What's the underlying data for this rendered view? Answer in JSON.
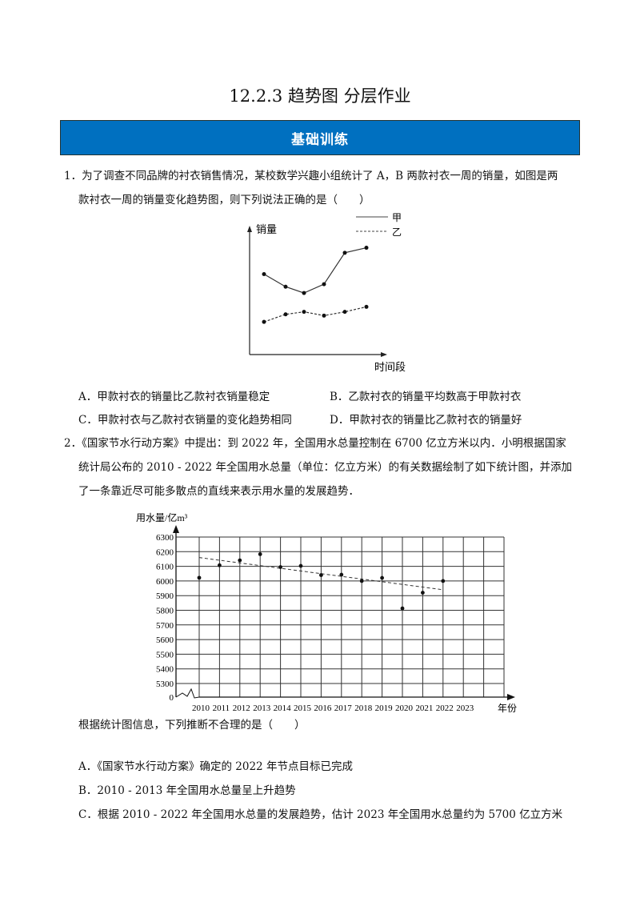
{
  "title": "12.2.3  趋势图  分层作业",
  "section_banner": "基础训练",
  "q1": {
    "line1": "1．为了调查不同品牌的衬衣销售情况，某校数学兴趣小组统计了 A，B 两款衬衣一周的销量，如图是两",
    "line2": "款衬衣一周的销量变化趋势图，则下列说法正确的是（　　）",
    "options": [
      "A．甲款衬衣的销量比乙款衬衣销量稳定",
      "B．乙款衬衣的销量平均数高于甲款衬衣",
      "C．甲款衬衣与乙款衬衣销量的变化趋势相同",
      "D．甲款衬衣的销量比乙款衬衣的销量好"
    ]
  },
  "q2": {
    "line1": "2．《国家节水行动方案》中提出：到 2022 年，全国用水总量控制在 6700 亿立方米以内．小明根据国家",
    "line2": "统计局公布的 2010 - 2022 年全国用水总量（单位：亿立方米）的有关数据绘制了如下统计图，并添加",
    "line3": "了一条靠近尽可能多散点的直线来表示用水量的发展趋势．",
    "prompt": "根据统计图信息，下列推断不合理的是（　　）",
    "options": [
      "A．《国家节水行动方案》确定的 2022 年节点目标已完成",
      "B．2010 - 2013 年全国用水总量呈上升趋势",
      "C．根据 2010 - 2022 年全国用水总量的发展趋势，估计 2023 年全国用水总量约为 5700 亿立方米"
    ]
  },
  "chart_data": [
    {
      "type": "line",
      "xlabel": "时间段",
      "ylabel": "销量",
      "legend_placement": "top-right",
      "x": [
        1,
        2,
        3,
        4,
        5,
        6
      ],
      "series": [
        {
          "name": "甲",
          "style": "solid",
          "values": [
            6.4,
            5.4,
            4.9,
            5.6,
            8.1,
            8.5
          ]
        },
        {
          "name": "乙",
          "style": "dashed",
          "values": [
            2.6,
            3.2,
            3.4,
            3.1,
            3.4,
            3.8
          ]
        }
      ]
    },
    {
      "type": "scatter",
      "xlabel": "年份",
      "ylabel": "用水量/亿m³",
      "grid": true,
      "y_axis_break": true,
      "yticks": [
        "0",
        "5300",
        "5400",
        "5500",
        "5600",
        "5700",
        "5800",
        "5900",
        "6000",
        "6100",
        "6200",
        "6300"
      ],
      "xticks": [
        "2010",
        "2011",
        "2012",
        "2013",
        "2014",
        "2015",
        "2016",
        "2017",
        "2018",
        "2019",
        "2020",
        "2021",
        "2022",
        "2023"
      ],
      "ylim": [
        5300,
        6300
      ],
      "x": [
        2010,
        2011,
        2012,
        2013,
        2014,
        2015,
        2016,
        2017,
        2018,
        2019,
        2020,
        2021,
        2022
      ],
      "values": [
        6022,
        6107,
        6141,
        6183,
        6095,
        6103,
        6040,
        6043,
        6000,
        6021,
        5813,
        5920,
        6000
      ],
      "trend_line": {
        "style": "dashed",
        "from": [
          2010,
          6160
        ],
        "to": [
          2022,
          5940
        ]
      }
    }
  ]
}
